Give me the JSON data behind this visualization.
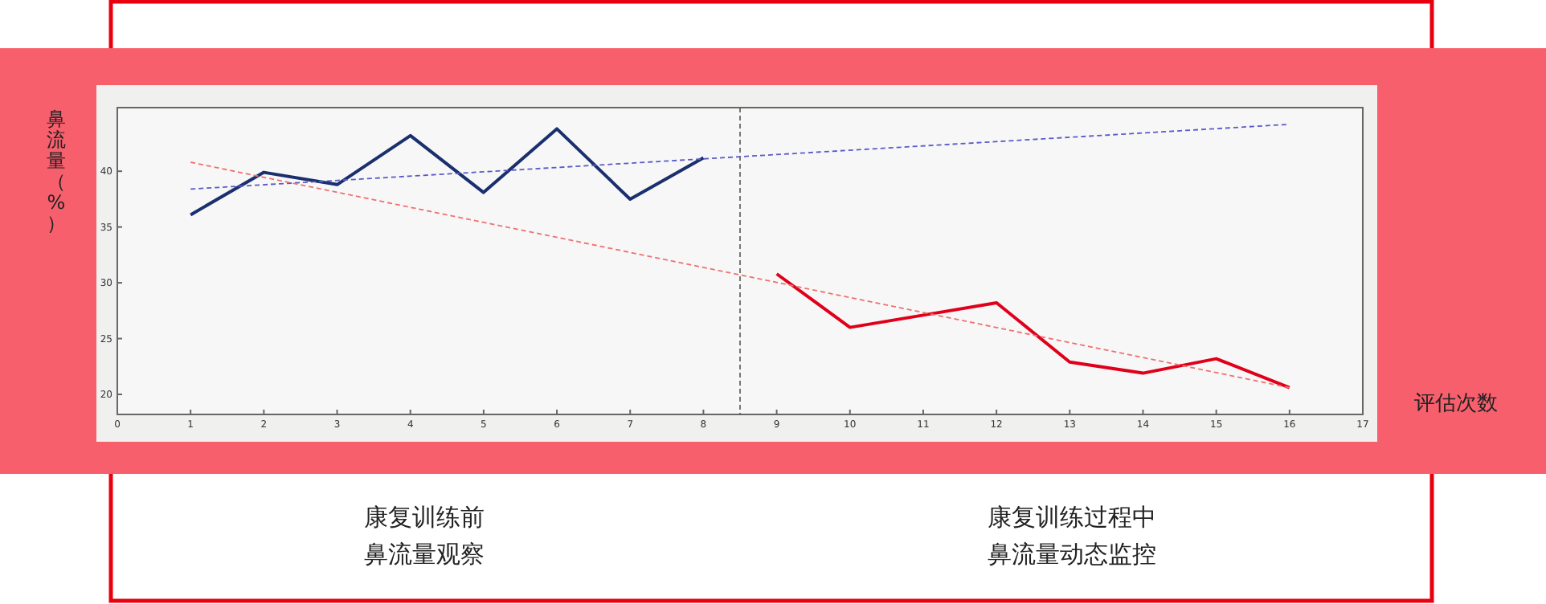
{
  "chart_data": {
    "type": "line",
    "ylabel": "鼻流量（%）",
    "xlabel": "评估次数",
    "xlim": [
      0,
      17
    ],
    "xticks": [
      0,
      1,
      2,
      3,
      4,
      5,
      6,
      7,
      8,
      9,
      10,
      11,
      12,
      13,
      14,
      15,
      16,
      17
    ],
    "ylim": [
      18.2,
      45.7
    ],
    "yticks": [
      20,
      25,
      30,
      35,
      40
    ],
    "series": [
      {
        "x": [
          1,
          2,
          3,
          4,
          5,
          6,
          7,
          8
        ],
        "values": [
          36.1,
          39.9,
          38.8,
          43.2,
          38.1,
          43.8,
          37.5,
          41.2
        ],
        "color": "#1a2f6e"
      },
      {
        "x": [
          9,
          10,
          11,
          12,
          13,
          14,
          15,
          16
        ],
        "values": [
          30.8,
          26.0,
          27.1,
          28.2,
          22.9,
          21.9,
          23.2,
          20.6
        ],
        "color": "#e0001a"
      },
      {
        "x": [
          1,
          16
        ],
        "values": [
          38.4,
          44.2
        ],
        "color": "#5a5ac8",
        "line_style": "dashed"
      },
      {
        "x": [
          1,
          16
        ],
        "values": [
          40.8,
          20.6
        ],
        "color": "#f07070",
        "line_style": "dashed"
      }
    ],
    "ref_lines": [
      {
        "axis": "x",
        "value": 8.5,
        "color": "#555555",
        "line_style": "dashed"
      }
    ],
    "annotations": [
      "康复训练前鼻流量观察",
      "康复训练过程中鼻流量动态监控"
    ]
  }
}
